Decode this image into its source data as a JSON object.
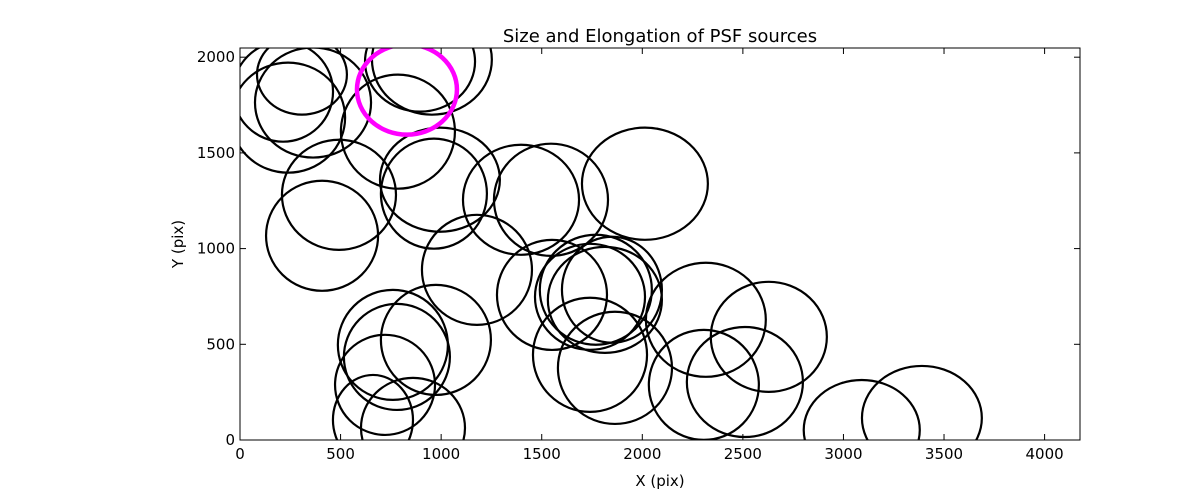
{
  "chart_data": {
    "type": "scatter",
    "marker": "ellipse",
    "title": "Size and Elongation of PSF sources",
    "xlabel": "X (pix)",
    "ylabel": "Y (pix)",
    "xlim": [
      0,
      4176
    ],
    "ylim": [
      0,
      2048
    ],
    "xticks": [
      0,
      500,
      1000,
      1500,
      2000,
      2500,
      3000,
      3500,
      4000
    ],
    "yticks": [
      0,
      500,
      1000,
      1500,
      2000
    ],
    "grid": false,
    "colors": {
      "default": "#000000",
      "highlight": "#ff00ff"
    },
    "ellipses": [
      {
        "x": 214,
        "y": 1820,
        "width": 497,
        "height": 523
      },
      {
        "x": 239,
        "y": 1684,
        "width": 567,
        "height": 575
      },
      {
        "x": 363,
        "y": 1763,
        "width": 577,
        "height": 575
      },
      {
        "x": 308,
        "y": 1909,
        "width": 447,
        "height": 418
      },
      {
        "x": 895,
        "y": 1977,
        "width": 547,
        "height": 523
      },
      {
        "x": 954,
        "y": 1987,
        "width": 596,
        "height": 575
      },
      {
        "x": 785,
        "y": 1611,
        "width": 567,
        "height": 596
      },
      {
        "x": 492,
        "y": 1281,
        "width": 567,
        "height": 575
      },
      {
        "x": 408,
        "y": 1067,
        "width": 557,
        "height": 575
      },
      {
        "x": 994,
        "y": 1360,
        "width": 596,
        "height": 544
      },
      {
        "x": 964,
        "y": 1287,
        "width": 527,
        "height": 575
      },
      {
        "x": 1397,
        "y": 1255,
        "width": 577,
        "height": 575
      },
      {
        "x": 1546,
        "y": 1255,
        "width": 567,
        "height": 586
      },
      {
        "x": 2013,
        "y": 1339,
        "width": 626,
        "height": 586
      },
      {
        "x": 1178,
        "y": 889,
        "width": 547,
        "height": 575
      },
      {
        "x": 1551,
        "y": 758,
        "width": 547,
        "height": 575
      },
      {
        "x": 1740,
        "y": 748,
        "width": 547,
        "height": 554
      },
      {
        "x": 1769,
        "y": 785,
        "width": 557,
        "height": 575
      },
      {
        "x": 1849,
        "y": 785,
        "width": 497,
        "height": 554
      },
      {
        "x": 1814,
        "y": 732,
        "width": 567,
        "height": 554
      },
      {
        "x": 760,
        "y": 497,
        "width": 547,
        "height": 575
      },
      {
        "x": 780,
        "y": 434,
        "width": 527,
        "height": 554
      },
      {
        "x": 974,
        "y": 523,
        "width": 547,
        "height": 575
      },
      {
        "x": 721,
        "y": 288,
        "width": 497,
        "height": 523
      },
      {
        "x": 661,
        "y": 105,
        "width": 398,
        "height": 470
      },
      {
        "x": 860,
        "y": 63,
        "width": 517,
        "height": 523
      },
      {
        "x": 1740,
        "y": 445,
        "width": 567,
        "height": 596
      },
      {
        "x": 1864,
        "y": 377,
        "width": 567,
        "height": 586
      },
      {
        "x": 2316,
        "y": 628,
        "width": 596,
        "height": 596
      },
      {
        "x": 2629,
        "y": 539,
        "width": 577,
        "height": 575
      },
      {
        "x": 2306,
        "y": 288,
        "width": 547,
        "height": 575
      },
      {
        "x": 2510,
        "y": 303,
        "width": 577,
        "height": 575
      },
      {
        "x": 3091,
        "y": 52,
        "width": 577,
        "height": 523
      },
      {
        "x": 3390,
        "y": 115,
        "width": 596,
        "height": 544
      },
      {
        "x": 830,
        "y": 1831,
        "width": 497,
        "height": 471,
        "highlight": true
      }
    ]
  }
}
